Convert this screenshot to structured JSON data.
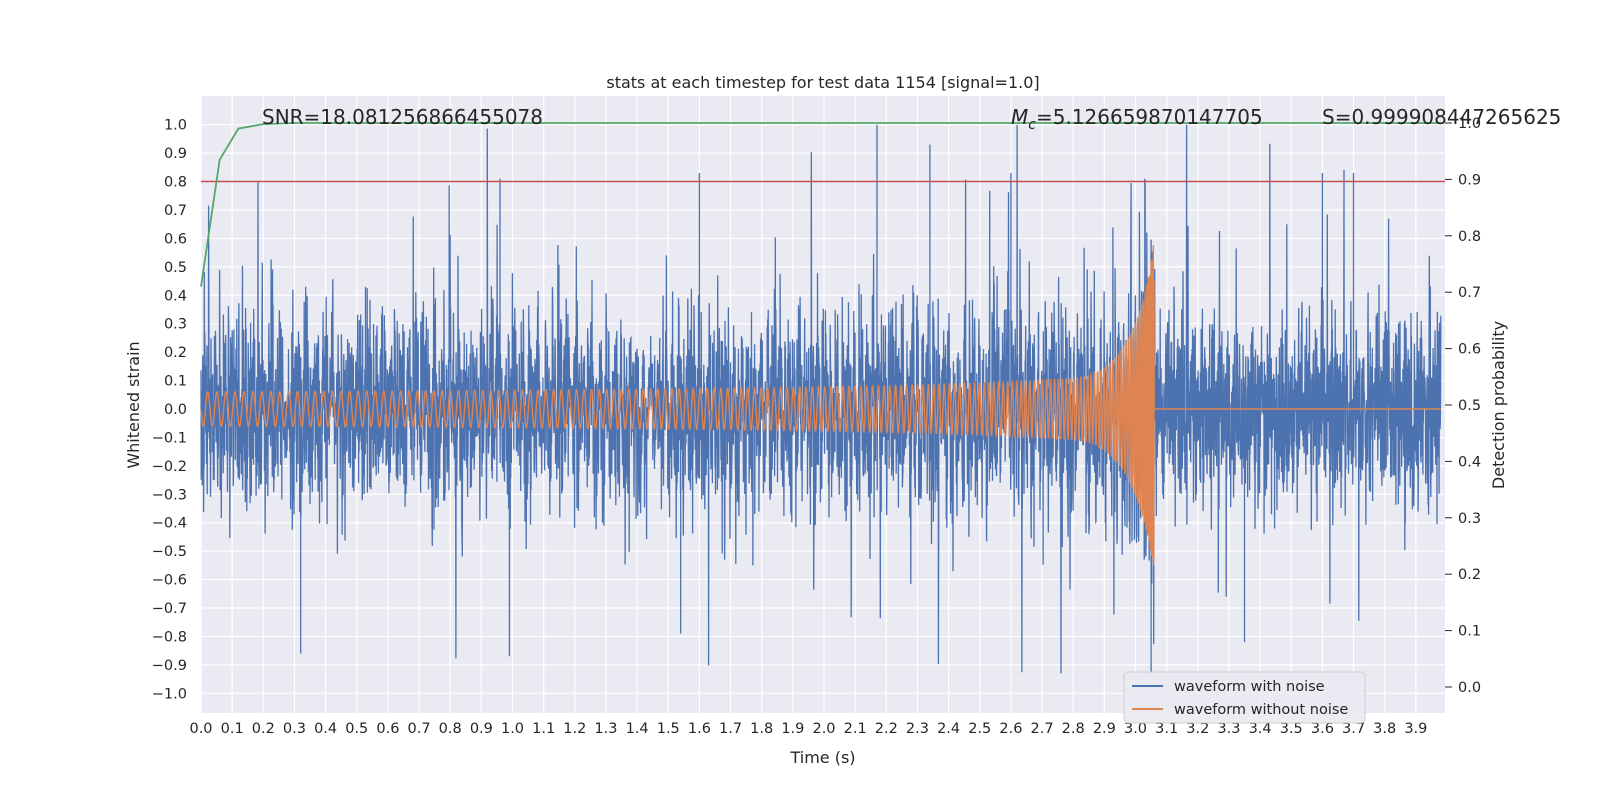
{
  "chart_data": {
    "type": "line",
    "title": "stats at each timestep for test data 1154 [signal=1.0]",
    "xlabel": "Time (s)",
    "ylabel": "Whitened strain",
    "y2label": "Detection probability",
    "xlim": [
      0.0,
      4.0
    ],
    "ylim": [
      -1.08,
      1.1
    ],
    "y2lim": [
      -0.045,
      1.045
    ],
    "xticks": [
      "0.0",
      "0.1",
      "0.2",
      "0.3",
      "0.4",
      "0.5",
      "0.6",
      "0.7",
      "0.8",
      "0.9",
      "1.0",
      "1.1",
      "1.2",
      "1.3",
      "1.4",
      "1.5",
      "1.6",
      "1.7",
      "1.8",
      "1.9",
      "2.0",
      "2.1",
      "2.2",
      "2.3",
      "2.4",
      "2.5",
      "2.6",
      "2.7",
      "2.8",
      "2.9",
      "3.0",
      "3.1",
      "3.2",
      "3.3",
      "3.4",
      "3.5",
      "3.6",
      "3.7",
      "3.8",
      "3.9"
    ],
    "yticks": [
      "1.0",
      "0.9",
      "0.8",
      "0.7",
      "0.6",
      "0.5",
      "0.4",
      "0.3",
      "0.2",
      "0.1",
      "0.0",
      "−0.1",
      "−0.2",
      "−0.3",
      "−0.4",
      "−0.5",
      "−0.6",
      "−0.7",
      "−0.8",
      "−0.9",
      "−1.0"
    ],
    "y2ticks": [
      "1.0",
      "0.9",
      "0.8",
      "0.7",
      "0.6",
      "0.5",
      "0.4",
      "0.3",
      "0.2",
      "0.1",
      "0.0"
    ],
    "grid": true,
    "legend_position": "lower-right",
    "annotations": {
      "snr": "SNR=18.081256866455078",
      "mc_symbol": "M",
      "mc_subscript": "c",
      "mc_value": "=5.126659870147705",
      "s": "S=0.999908447265625"
    },
    "series": [
      {
        "name": "waveform with noise",
        "color": "#4c72b0",
        "axis": "left",
        "description_values": {
          "noise_std": 0.2,
          "max": 1.0,
          "min": -0.93,
          "t_end": 3.98
        }
      },
      {
        "name": "waveform without noise",
        "color": "#dd8452",
        "axis": "left",
        "chirp": {
          "t_start": 0.0,
          "t_merge": 3.06,
          "amp_start": 0.06,
          "amp_peak": 0.41,
          "f_start": 34
        }
      },
      {
        "name": "",
        "color": "#55a868",
        "axis": "right",
        "x": [
          0.0,
          0.06,
          0.12,
          0.2,
          0.3,
          1.0,
          2.0,
          3.0,
          3.98
        ],
        "y": [
          0.71,
          0.935,
          0.99,
          0.998,
          1.0,
          1.0,
          1.0,
          1.0,
          1.0
        ]
      },
      {
        "name": "",
        "color": "#c44e52",
        "axis": "left",
        "type": "hline",
        "y": 0.8
      }
    ]
  }
}
